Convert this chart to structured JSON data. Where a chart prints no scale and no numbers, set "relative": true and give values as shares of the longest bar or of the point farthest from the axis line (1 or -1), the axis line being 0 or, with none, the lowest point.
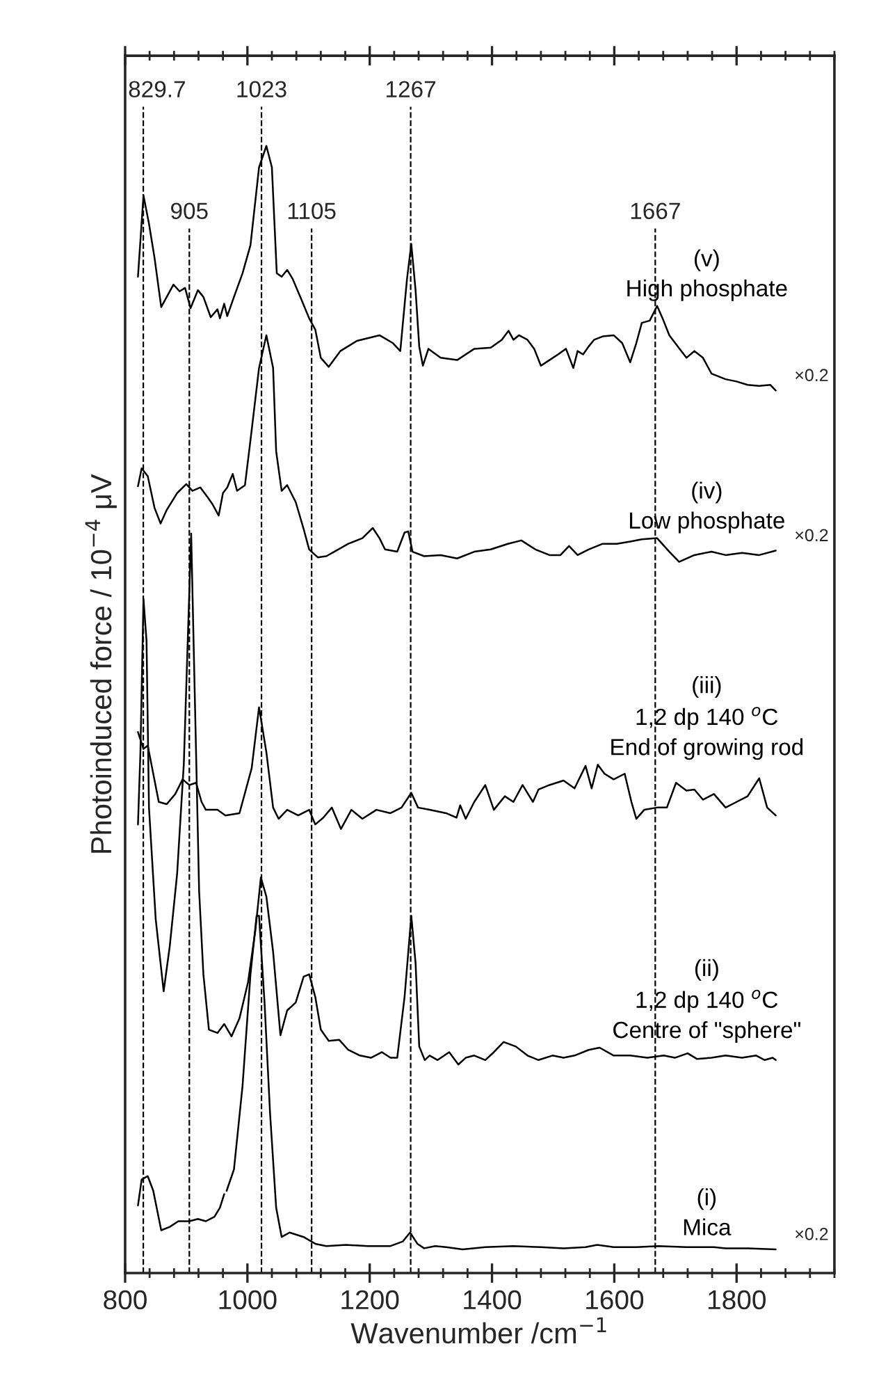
{
  "chart_data": {
    "type": "line",
    "relative": true,
    "xlabel": "Wavenumber /cm$^{−1}$",
    "ylabel": "Photoinduced force / 10$^{−4}$ μV",
    "xlim": [
      800,
      1960
    ],
    "xticks": [
      800,
      1000,
      1200,
      1400,
      1600,
      1800
    ],
    "legend": false,
    "grid": false,
    "marker": "none",
    "line_style": "solid",
    "series": [
      {
        "name": "(v)\nHigh phosphate",
        "color": "#000000",
        "x": [
          821,
          830,
          839,
          848,
          859,
          868,
          879,
          889,
          898,
          907,
          919,
          928,
          940,
          951,
          955,
          962,
          967,
          978,
          992,
          1005,
          1019,
          1031,
          1040,
          1048,
          1056,
          1065,
          1074,
          1088,
          1101,
          1111,
          1120,
          1133,
          1152,
          1179,
          1216,
          1238,
          1250,
          1261,
          1268,
          1275,
          1281,
          1287,
          1296,
          1316,
          1343,
          1371,
          1398,
          1416,
          1427,
          1435,
          1444,
          1458,
          1469,
          1480,
          1494,
          1508,
          1521,
          1533,
          1540,
          1549,
          1558,
          1567,
          1581,
          1599,
          1613,
          1626,
          1636,
          1645,
          1658,
          1670,
          1679,
          1690,
          1704,
          1718,
          1731,
          1745,
          1759,
          1782,
          1800,
          1818,
          1837,
          1855,
          1864
        ],
        "values": [
          0.884,
          0.956,
          0.931,
          0.901,
          0.857,
          0.866,
          0.877,
          0.871,
          0.874,
          0.856,
          0.872,
          0.866,
          0.848,
          0.855,
          0.847,
          0.86,
          0.849,
          0.866,
          0.887,
          0.912,
          0.981,
          1.0,
          0.981,
          0.887,
          0.884,
          0.89,
          0.882,
          0.864,
          0.847,
          0.837,
          0.812,
          0.804,
          0.818,
          0.827,
          0.832,
          0.825,
          0.818,
          0.882,
          0.913,
          0.872,
          0.822,
          0.805,
          0.82,
          0.812,
          0.81,
          0.82,
          0.821,
          0.828,
          0.836,
          0.828,
          0.832,
          0.828,
          0.82,
          0.805,
          0.81,
          0.815,
          0.82,
          0.803,
          0.818,
          0.815,
          0.822,
          0.828,
          0.831,
          0.832,
          0.825,
          0.808,
          0.825,
          0.843,
          0.845,
          0.858,
          0.847,
          0.832,
          0.822,
          0.812,
          0.818,
          0.812,
          0.798,
          0.793,
          0.791,
          0.788,
          0.787,
          0.788,
          0.783
        ]
      },
      {
        "name": "(iv)\nLow phosphate",
        "color": "#000000",
        "x": [
          821,
          827,
          837,
          848,
          858,
          868,
          885,
          900,
          910,
          923,
          934,
          943,
          953,
          960,
          967,
          976,
          983,
          996,
          1005,
          1019,
          1031,
          1042,
          1047,
          1056,
          1065,
          1079,
          1092,
          1101,
          1115,
          1129,
          1142,
          1165,
          1188,
          1205,
          1216,
          1225,
          1245,
          1257,
          1263,
          1270,
          1289,
          1316,
          1343,
          1371,
          1398,
          1426,
          1448,
          1471,
          1494,
          1512,
          1526,
          1540,
          1558,
          1581,
          1604,
          1626,
          1645,
          1670,
          1690,
          1706,
          1731,
          1759,
          1782,
          1809,
          1837,
          1864
        ],
        "values": [
          0.698,
          0.714,
          0.707,
          0.679,
          0.665,
          0.677,
          0.692,
          0.7,
          0.694,
          0.697,
          0.689,
          0.682,
          0.672,
          0.692,
          0.697,
          0.709,
          0.694,
          0.699,
          0.739,
          0.803,
          0.832,
          0.803,
          0.729,
          0.694,
          0.699,
          0.684,
          0.66,
          0.642,
          0.635,
          0.636,
          0.64,
          0.647,
          0.652,
          0.661,
          0.652,
          0.642,
          0.64,
          0.657,
          0.658,
          0.64,
          0.636,
          0.637,
          0.634,
          0.64,
          0.642,
          0.647,
          0.65,
          0.642,
          0.637,
          0.637,
          0.645,
          0.637,
          0.642,
          0.647,
          0.647,
          0.649,
          0.651,
          0.652,
          0.64,
          0.631,
          0.637,
          0.64,
          0.637,
          0.639,
          0.637,
          0.641
        ]
      },
      {
        "name": "(iii)\n1,2 dp 140 $^{o}$C\nEnd of growing rod",
        "color": "#000000",
        "x": [
          821,
          830,
          837,
          846,
          855,
          868,
          882,
          894,
          905,
          916,
          925,
          932,
          951,
          964,
          987,
          1007,
          1019,
          1031,
          1042,
          1051,
          1065,
          1083,
          1101,
          1111,
          1124,
          1138,
          1153,
          1170,
          1188,
          1211,
          1234,
          1252,
          1268,
          1279,
          1298,
          1325,
          1342,
          1348,
          1357,
          1371,
          1389,
          1403,
          1421,
          1435,
          1450,
          1467,
          1476,
          1494,
          1517,
          1535,
          1553,
          1563,
          1573,
          1584,
          1599,
          1617,
          1628,
          1636,
          1649,
          1670,
          1686,
          1701,
          1718,
          1731,
          1745,
          1763,
          1782,
          1800,
          1818,
          1837,
          1850,
          1864
        ],
        "values": [
          0.48,
          0.465,
          0.468,
          0.443,
          0.418,
          0.416,
          0.425,
          0.438,
          0.433,
          0.435,
          0.418,
          0.411,
          0.411,
          0.406,
          0.408,
          0.448,
          0.502,
          0.462,
          0.413,
          0.403,
          0.411,
          0.406,
          0.411,
          0.398,
          0.404,
          0.413,
          0.394,
          0.411,
          0.403,
          0.411,
          0.408,
          0.413,
          0.426,
          0.413,
          0.411,
          0.408,
          0.404,
          0.415,
          0.403,
          0.418,
          0.433,
          0.411,
          0.423,
          0.418,
          0.433,
          0.418,
          0.429,
          0.433,
          0.437,
          0.43,
          0.45,
          0.43,
          0.451,
          0.443,
          0.438,
          0.443,
          0.418,
          0.403,
          0.411,
          0.413,
          0.413,
          0.435,
          0.428,
          0.429,
          0.42,
          0.425,
          0.413,
          0.418,
          0.423,
          0.439,
          0.413,
          0.406
        ]
      },
      {
        "name": "(ii)\n1,2 dp 140 $^{o}$C\nCentre of \"sphere\"",
        "color": "#000000",
        "x": [
          821,
          825,
          830,
          835,
          839,
          850,
          863,
          873,
          885,
          896,
          908,
          916,
          921,
          928,
          937,
          951,
          962,
          974,
          987,
          1001,
          1013,
          1022,
          1031,
          1042,
          1054,
          1065,
          1079,
          1092,
          1101,
          1111,
          1120,
          1133,
          1150,
          1165,
          1184,
          1202,
          1220,
          1234,
          1245,
          1257,
          1268,
          1275,
          1281,
          1290,
          1298,
          1311,
          1330,
          1345,
          1357,
          1371,
          1389,
          1403,
          1419,
          1439,
          1458,
          1476,
          1499,
          1517,
          1535,
          1558,
          1576,
          1599,
          1626,
          1654,
          1681,
          1699,
          1720,
          1735,
          1759,
          1782,
          1809,
          1832,
          1846,
          1859,
          1864
        ],
        "values": [
          0.398,
          0.462,
          0.598,
          0.561,
          0.413,
          0.314,
          0.25,
          0.29,
          0.354,
          0.452,
          0.656,
          0.462,
          0.339,
          0.265,
          0.216,
          0.213,
          0.221,
          0.21,
          0.226,
          0.258,
          0.304,
          0.351,
          0.334,
          0.285,
          0.211,
          0.233,
          0.24,
          0.263,
          0.265,
          0.245,
          0.216,
          0.206,
          0.207,
          0.198,
          0.193,
          0.191,
          0.196,
          0.191,
          0.191,
          0.245,
          0.317,
          0.275,
          0.201,
          0.189,
          0.193,
          0.189,
          0.196,
          0.185,
          0.191,
          0.193,
          0.189,
          0.196,
          0.205,
          0.201,
          0.193,
          0.189,
          0.193,
          0.191,
          0.193,
          0.198,
          0.2,
          0.193,
          0.193,
          0.191,
          0.193,
          0.191,
          0.195,
          0.19,
          0.191,
          0.193,
          0.191,
          0.193,
          0.189,
          0.191,
          0.189
        ]
      },
      {
        "name": "(i)\nMica",
        "color": "#000000",
        "x": [
          821,
          827,
          837,
          846,
          859,
          873,
          887,
          905,
          919,
          932,
          946,
          955,
          962,
          964,
          966,
          978,
          992,
          1005,
          1015,
          1019,
          1028,
          1037,
          1047,
          1056,
          1069,
          1092,
          1111,
          1129,
          1161,
          1197,
          1234,
          1254,
          1266,
          1278,
          1289,
          1307,
          1325,
          1352,
          1389,
          1435,
          1480,
          1517,
          1553,
          1572,
          1599,
          1636,
          1672,
          1718,
          1763,
          1782,
          1818,
          1864
        ],
        "values": [
          0.06,
          0.083,
          0.086,
          0.073,
          0.038,
          0.041,
          0.046,
          0.046,
          0.048,
          0.046,
          0.05,
          0.058,
          0.07,
          null,
          0.073,
          0.092,
          0.166,
          0.265,
          0.317,
          0.317,
          0.24,
          0.142,
          0.058,
          0.032,
          0.036,
          0.032,
          0.026,
          0.024,
          0.025,
          0.024,
          0.024,
          0.028,
          0.036,
          0.026,
          0.022,
          0.024,
          0.023,
          0.021,
          0.023,
          0.024,
          0.023,
          0.022,
          0.023,
          0.025,
          0.023,
          0.023,
          0.024,
          0.023,
          0.023,
          0.022,
          0.022,
          0.021
        ]
      }
    ],
    "ref_lines": [
      {
        "axis": "x",
        "value": 829.7,
        "label": "829.7",
        "color": "#000000",
        "line_style": "dashed"
      },
      {
        "axis": "x",
        "value": 905,
        "label": "905",
        "color": "#000000",
        "line_style": "dashed"
      },
      {
        "axis": "x",
        "value": 1023,
        "label": "1023",
        "color": "#000000",
        "line_style": "dashed"
      },
      {
        "axis": "x",
        "value": 1105,
        "label": "1105",
        "color": "#000000",
        "line_style": "dashed"
      },
      {
        "axis": "x",
        "value": 1267,
        "label": "1267",
        "color": "#000000",
        "line_style": "dashed"
      },
      {
        "axis": "x",
        "value": 1667,
        "label": "1667",
        "color": "#000000",
        "line_style": "dashed"
      }
    ],
    "annotations": [
      "×0.2",
      "×0.2",
      "×0.2"
    ]
  }
}
